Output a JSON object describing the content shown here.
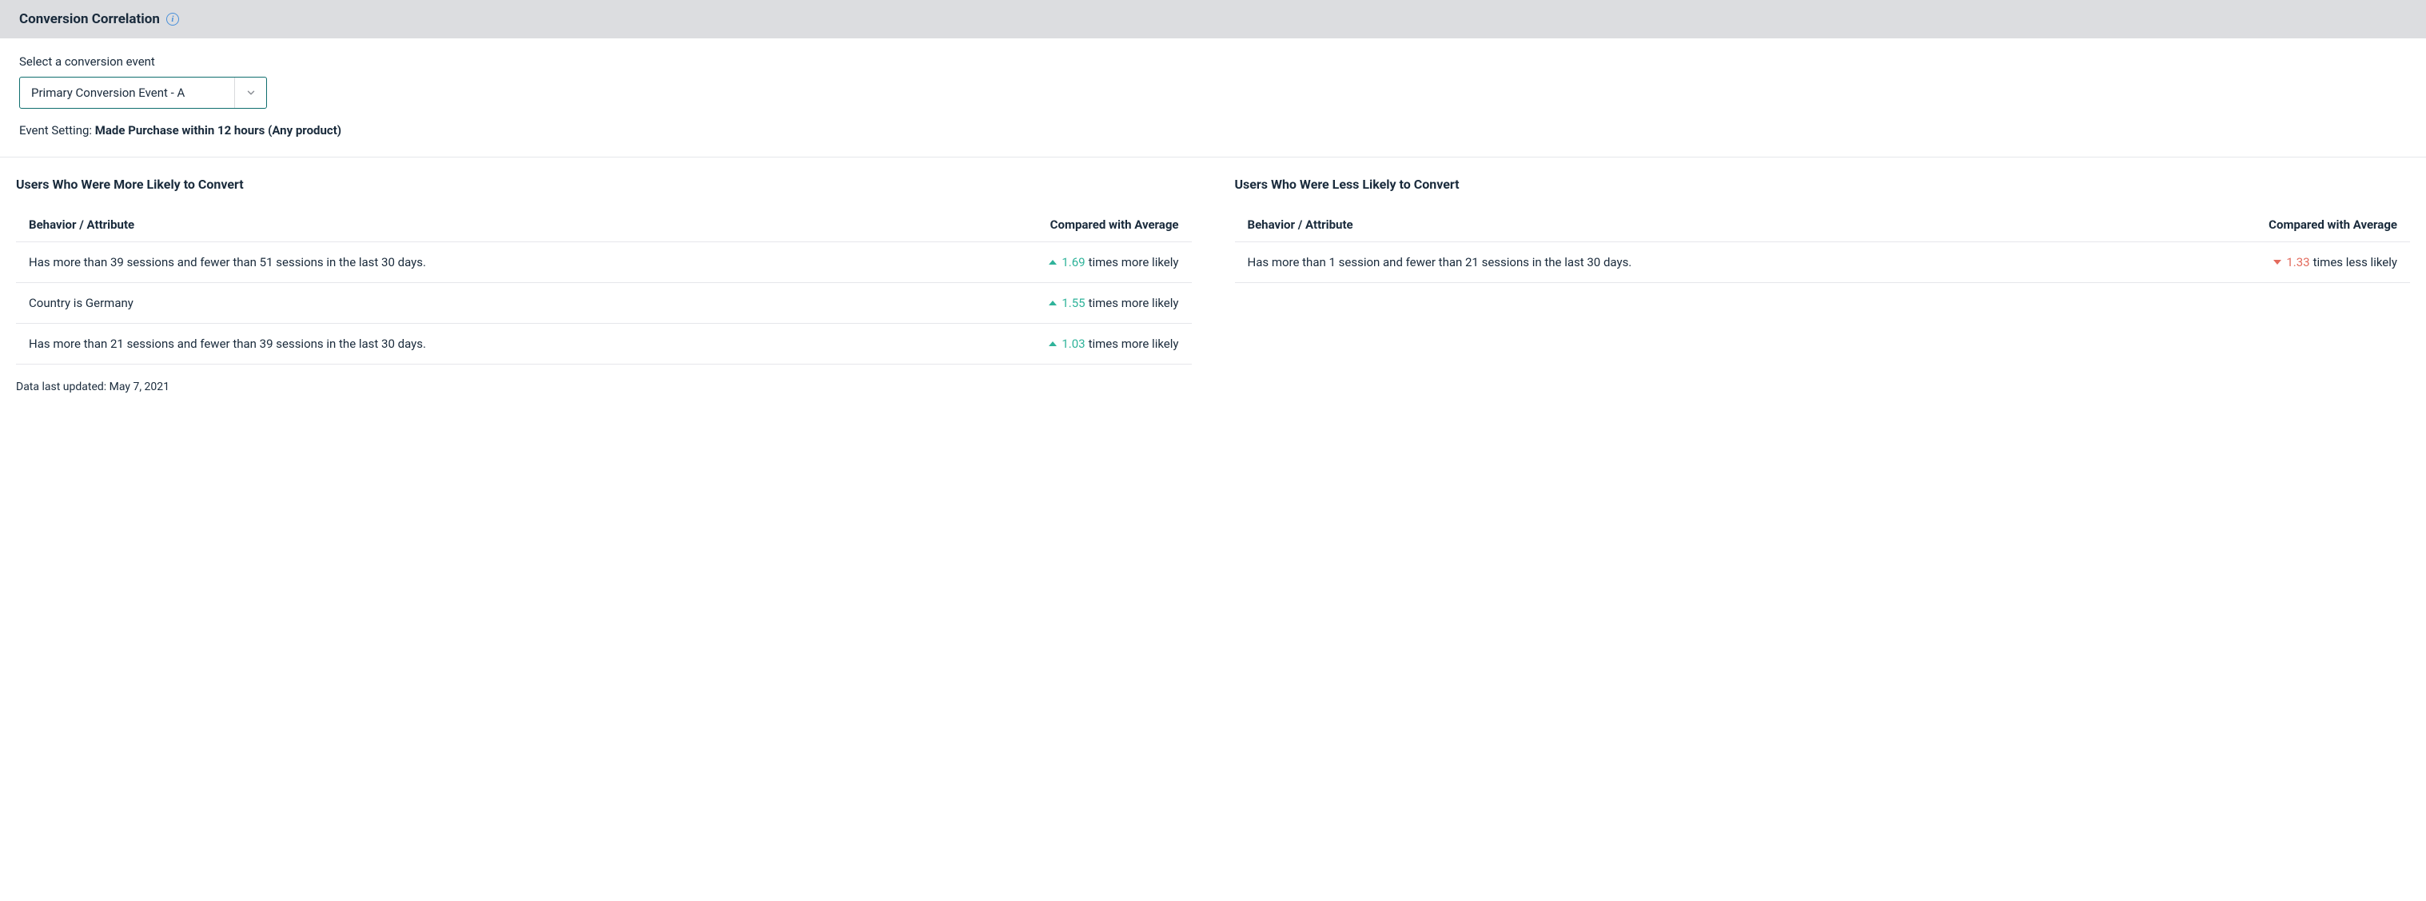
{
  "header": {
    "title": "Conversion Correlation"
  },
  "controls": {
    "select_label": "Select a conversion event",
    "selected_value": "Primary Conversion Event - A",
    "event_setting_label": "Event Setting: ",
    "event_setting_value": "Made Purchase within 12 hours (Any product)"
  },
  "tables": {
    "col_left_header": "Behavior / Attribute",
    "col_right_header": "Compared with Average",
    "more": {
      "title": "Users Who Were More Likely to Convert",
      "rows": [
        {
          "behavior": "Has more than 39 sessions and fewer than 51 sessions in the last 30 days.",
          "direction": "up",
          "value": "1.69",
          "suffix": "times more likely"
        },
        {
          "behavior": "Country is Germany",
          "direction": "up",
          "value": "1.55",
          "suffix": "times more likely"
        },
        {
          "behavior": "Has more than 21 sessions and fewer than 39 sessions in the last 30 days.",
          "direction": "up",
          "value": "1.03",
          "suffix": "times more likely"
        }
      ]
    },
    "less": {
      "title": "Users Who Were Less Likely to Convert",
      "rows": [
        {
          "behavior": "Has more than 1 session and fewer than 21 sessions in the last 30 days.",
          "direction": "down",
          "value": "1.33",
          "suffix": "times less likely"
        }
      ]
    }
  },
  "footer": {
    "last_updated": "Data last updated: May 7, 2021"
  },
  "colors": {
    "header_bg": "#dcdde0",
    "border": "#e6e7eb",
    "text": "#1a2b3c",
    "accent_teal": "#0f6e6e",
    "up": "#2fb39a",
    "down": "#e36a5c",
    "info": "#4a90d9"
  }
}
